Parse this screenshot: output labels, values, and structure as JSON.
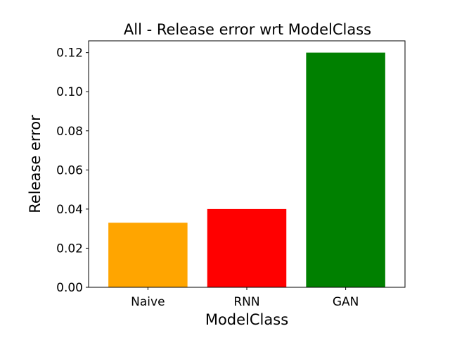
{
  "chart_data": {
    "type": "bar",
    "title": "All - Release error wrt ModelClass",
    "xlabel": "ModelClass",
    "ylabel": "Release error",
    "categories": [
      "Naive",
      "RNN",
      "GAN"
    ],
    "values": [
      0.033,
      0.04,
      0.12
    ],
    "colors": [
      "#ffa500",
      "#ff0000",
      "#008000"
    ],
    "ylim": [
      0,
      0.126
    ],
    "yticks": [
      "0.00",
      "0.02",
      "0.04",
      "0.06",
      "0.08",
      "0.10",
      "0.12"
    ],
    "ytick_values": [
      0,
      0.02,
      0.04,
      0.06,
      0.08,
      0.1,
      0.12
    ],
    "grid": false,
    "legend": "none"
  }
}
